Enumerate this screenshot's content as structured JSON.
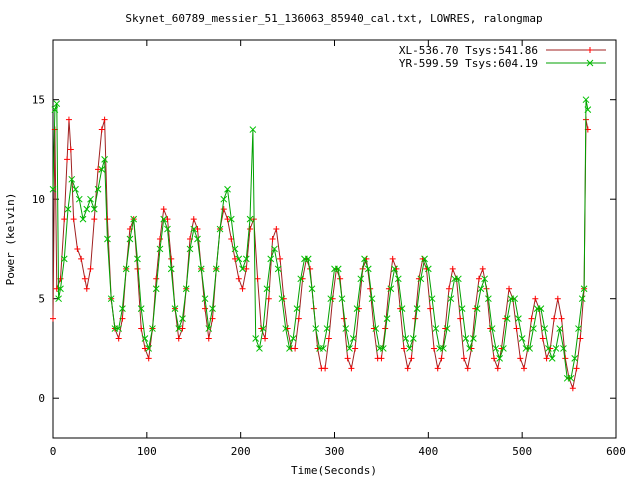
{
  "chart_data": {
    "type": "line",
    "title": "Skynet_60789_messier_51_136063_85940_cal.txt, LOWRES, ralongmap",
    "xlabel": "Time(Seconds)",
    "ylabel": "Power (kelvin)",
    "xlim": [
      0,
      600
    ],
    "ylim": [
      -2,
      18
    ],
    "xticks": [
      0,
      100,
      200,
      300,
      400,
      500,
      600
    ],
    "yticks": [
      0,
      5,
      10,
      15
    ],
    "grid": false,
    "legend_position": "top-right",
    "series": [
      {
        "name": "XL-536.70 Tsys:541.86",
        "color": "#ff0000",
        "line_color": "#a02020",
        "marker": "plus",
        "points": [
          [
            0,
            4.0
          ],
          [
            2,
            13.5
          ],
          [
            4,
            5.5
          ],
          [
            8,
            6.0
          ],
          [
            12,
            9.0
          ],
          [
            15,
            12.0
          ],
          [
            17,
            14.0
          ],
          [
            19,
            12.5
          ],
          [
            22,
            9.0
          ],
          [
            26,
            7.5
          ],
          [
            30,
            7.0
          ],
          [
            34,
            6.0
          ],
          [
            36,
            5.5
          ],
          [
            40,
            6.5
          ],
          [
            44,
            9.0
          ],
          [
            48,
            11.5
          ],
          [
            52,
            13.5
          ],
          [
            55,
            14.0
          ],
          [
            58,
            9.0
          ],
          [
            62,
            5.0
          ],
          [
            66,
            3.5
          ],
          [
            70,
            3.0
          ],
          [
            74,
            4.0
          ],
          [
            78,
            6.5
          ],
          [
            82,
            8.5
          ],
          [
            86,
            9.0
          ],
          [
            90,
            6.5
          ],
          [
            94,
            3.5
          ],
          [
            98,
            2.5
          ],
          [
            102,
            2.0
          ],
          [
            106,
            3.5
          ],
          [
            110,
            6.0
          ],
          [
            114,
            8.0
          ],
          [
            118,
            9.5
          ],
          [
            122,
            9.0
          ],
          [
            126,
            7.0
          ],
          [
            130,
            4.5
          ],
          [
            134,
            3.0
          ],
          [
            138,
            3.5
          ],
          [
            142,
            5.5
          ],
          [
            146,
            8.0
          ],
          [
            150,
            9.0
          ],
          [
            154,
            8.5
          ],
          [
            158,
            6.5
          ],
          [
            162,
            4.5
          ],
          [
            166,
            3.0
          ],
          [
            170,
            4.0
          ],
          [
            174,
            6.5
          ],
          [
            178,
            8.5
          ],
          [
            182,
            9.5
          ],
          [
            186,
            9.0
          ],
          [
            190,
            8.0
          ],
          [
            194,
            7.0
          ],
          [
            198,
            6.0
          ],
          [
            202,
            5.5
          ],
          [
            206,
            6.5
          ],
          [
            210,
            8.5
          ],
          [
            214,
            9.0
          ],
          [
            218,
            6.0
          ],
          [
            222,
            3.5
          ],
          [
            226,
            3.0
          ],
          [
            230,
            5.0
          ],
          [
            234,
            8.0
          ],
          [
            238,
            8.5
          ],
          [
            242,
            7.0
          ],
          [
            246,
            5.0
          ],
          [
            250,
            3.5
          ],
          [
            254,
            2.5
          ],
          [
            258,
            2.5
          ],
          [
            262,
            4.0
          ],
          [
            266,
            6.0
          ],
          [
            270,
            7.0
          ],
          [
            274,
            6.5
          ],
          [
            278,
            4.5
          ],
          [
            282,
            2.5
          ],
          [
            286,
            1.5
          ],
          [
            290,
            1.5
          ],
          [
            294,
            3.0
          ],
          [
            298,
            5.0
          ],
          [
            302,
            6.5
          ],
          [
            306,
            6.0
          ],
          [
            310,
            4.0
          ],
          [
            314,
            2.0
          ],
          [
            318,
            1.5
          ],
          [
            322,
            2.5
          ],
          [
            326,
            4.5
          ],
          [
            330,
            6.5
          ],
          [
            334,
            7.0
          ],
          [
            338,
            5.5
          ],
          [
            342,
            3.5
          ],
          [
            346,
            2.0
          ],
          [
            350,
            2.0
          ],
          [
            354,
            3.5
          ],
          [
            358,
            5.5
          ],
          [
            362,
            7.0
          ],
          [
            366,
            6.5
          ],
          [
            370,
            4.5
          ],
          [
            374,
            2.5
          ],
          [
            378,
            1.5
          ],
          [
            382,
            2.0
          ],
          [
            386,
            4.0
          ],
          [
            390,
            6.0
          ],
          [
            394,
            7.0
          ],
          [
            398,
            6.5
          ],
          [
            402,
            4.5
          ],
          [
            406,
            2.5
          ],
          [
            410,
            1.5
          ],
          [
            414,
            2.0
          ],
          [
            418,
            3.5
          ],
          [
            422,
            5.5
          ],
          [
            426,
            6.5
          ],
          [
            430,
            6.0
          ],
          [
            434,
            4.0
          ],
          [
            438,
            2.0
          ],
          [
            442,
            1.5
          ],
          [
            446,
            2.5
          ],
          [
            450,
            4.5
          ],
          [
            454,
            6.0
          ],
          [
            458,
            6.5
          ],
          [
            462,
            5.5
          ],
          [
            466,
            3.5
          ],
          [
            470,
            2.0
          ],
          [
            474,
            1.5
          ],
          [
            478,
            2.5
          ],
          [
            482,
            4.0
          ],
          [
            486,
            5.5
          ],
          [
            490,
            5.0
          ],
          [
            494,
            3.5
          ],
          [
            498,
            2.0
          ],
          [
            502,
            1.5
          ],
          [
            506,
            2.5
          ],
          [
            510,
            4.0
          ],
          [
            514,
            5.0
          ],
          [
            518,
            4.5
          ],
          [
            522,
            3.0
          ],
          [
            526,
            2.0
          ],
          [
            530,
            2.5
          ],
          [
            534,
            4.0
          ],
          [
            538,
            5.0
          ],
          [
            542,
            4.0
          ],
          [
            546,
            2.0
          ],
          [
            550,
            1.0
          ],
          [
            554,
            0.5
          ],
          [
            558,
            1.5
          ],
          [
            562,
            3.0
          ],
          [
            566,
            5.5
          ],
          [
            568,
            14.0
          ],
          [
            570,
            13.5
          ]
        ]
      },
      {
        "name": "YR-599.59 Tsys:604.19",
        "color": "#00c000",
        "line_color": "#00a000",
        "marker": "x",
        "points": [
          [
            0,
            10.5
          ],
          [
            2,
            14.5
          ],
          [
            4,
            14.8
          ],
          [
            6,
            5.0
          ],
          [
            8,
            5.5
          ],
          [
            12,
            7.0
          ],
          [
            16,
            9.5
          ],
          [
            20,
            11.0
          ],
          [
            24,
            10.5
          ],
          [
            28,
            10.0
          ],
          [
            32,
            9.0
          ],
          [
            36,
            9.5
          ],
          [
            40,
            10.0
          ],
          [
            44,
            9.5
          ],
          [
            48,
            10.5
          ],
          [
            52,
            11.5
          ],
          [
            55,
            12.0
          ],
          [
            58,
            8.0
          ],
          [
            62,
            5.0
          ],
          [
            66,
            3.5
          ],
          [
            70,
            3.5
          ],
          [
            74,
            4.5
          ],
          [
            78,
            6.5
          ],
          [
            82,
            8.0
          ],
          [
            86,
            9.0
          ],
          [
            90,
            7.0
          ],
          [
            94,
            4.5
          ],
          [
            98,
            3.0
          ],
          [
            102,
            2.5
          ],
          [
            106,
            3.5
          ],
          [
            110,
            5.5
          ],
          [
            114,
            7.5
          ],
          [
            118,
            9.0
          ],
          [
            122,
            8.5
          ],
          [
            126,
            6.5
          ],
          [
            130,
            4.5
          ],
          [
            134,
            3.5
          ],
          [
            138,
            4.0
          ],
          [
            142,
            5.5
          ],
          [
            146,
            7.5
          ],
          [
            150,
            8.5
          ],
          [
            154,
            8.0
          ],
          [
            158,
            6.5
          ],
          [
            162,
            5.0
          ],
          [
            166,
            3.5
          ],
          [
            170,
            4.5
          ],
          [
            174,
            6.5
          ],
          [
            178,
            8.5
          ],
          [
            182,
            10.0
          ],
          [
            186,
            10.5
          ],
          [
            190,
            9.0
          ],
          [
            194,
            7.5
          ],
          [
            198,
            7.0
          ],
          [
            202,
            6.5
          ],
          [
            206,
            7.0
          ],
          [
            210,
            9.0
          ],
          [
            213,
            13.5
          ],
          [
            216,
            3.0
          ],
          [
            220,
            2.5
          ],
          [
            224,
            3.5
          ],
          [
            228,
            5.5
          ],
          [
            232,
            7.0
          ],
          [
            236,
            7.5
          ],
          [
            240,
            6.5
          ],
          [
            244,
            5.0
          ],
          [
            248,
            3.5
          ],
          [
            252,
            2.5
          ],
          [
            256,
            3.0
          ],
          [
            260,
            4.5
          ],
          [
            264,
            6.0
          ],
          [
            268,
            7.0
          ],
          [
            272,
            7.0
          ],
          [
            276,
            5.5
          ],
          [
            280,
            3.5
          ],
          [
            284,
            2.5
          ],
          [
            288,
            2.5
          ],
          [
            292,
            3.5
          ],
          [
            296,
            5.0
          ],
          [
            300,
            6.5
          ],
          [
            304,
            6.5
          ],
          [
            308,
            5.0
          ],
          [
            312,
            3.5
          ],
          [
            316,
            2.5
          ],
          [
            320,
            3.0
          ],
          [
            324,
            4.5
          ],
          [
            328,
            6.0
          ],
          [
            332,
            7.0
          ],
          [
            336,
            6.5
          ],
          [
            340,
            5.0
          ],
          [
            344,
            3.5
          ],
          [
            348,
            2.5
          ],
          [
            352,
            2.5
          ],
          [
            356,
            4.0
          ],
          [
            360,
            5.5
          ],
          [
            364,
            6.5
          ],
          [
            368,
            6.0
          ],
          [
            372,
            4.5
          ],
          [
            376,
            3.0
          ],
          [
            380,
            2.5
          ],
          [
            384,
            3.0
          ],
          [
            388,
            4.5
          ],
          [
            392,
            6.0
          ],
          [
            396,
            7.0
          ],
          [
            400,
            6.5
          ],
          [
            404,
            5.0
          ],
          [
            408,
            3.5
          ],
          [
            412,
            2.5
          ],
          [
            416,
            2.5
          ],
          [
            420,
            3.5
          ],
          [
            424,
            5.0
          ],
          [
            428,
            6.0
          ],
          [
            432,
            6.0
          ],
          [
            436,
            4.5
          ],
          [
            440,
            3.0
          ],
          [
            444,
            2.5
          ],
          [
            448,
            3.0
          ],
          [
            452,
            4.5
          ],
          [
            456,
            5.5
          ],
          [
            460,
            6.0
          ],
          [
            464,
            5.0
          ],
          [
            468,
            3.5
          ],
          [
            472,
            2.5
          ],
          [
            476,
            2.0
          ],
          [
            480,
            2.5
          ],
          [
            484,
            4.0
          ],
          [
            488,
            5.0
          ],
          [
            492,
            5.0
          ],
          [
            496,
            4.0
          ],
          [
            500,
            3.0
          ],
          [
            504,
            2.5
          ],
          [
            508,
            2.5
          ],
          [
            512,
            3.5
          ],
          [
            516,
            4.5
          ],
          [
            520,
            4.5
          ],
          [
            524,
            3.5
          ],
          [
            528,
            2.5
          ],
          [
            532,
            2.0
          ],
          [
            536,
            2.5
          ],
          [
            540,
            3.5
          ],
          [
            544,
            2.5
          ],
          [
            548,
            1.0
          ],
          [
            552,
            1.0
          ],
          [
            556,
            2.0
          ],
          [
            560,
            3.5
          ],
          [
            564,
            5.0
          ],
          [
            566,
            5.5
          ],
          [
            568,
            15.0
          ],
          [
            570,
            14.5
          ]
        ]
      }
    ]
  }
}
